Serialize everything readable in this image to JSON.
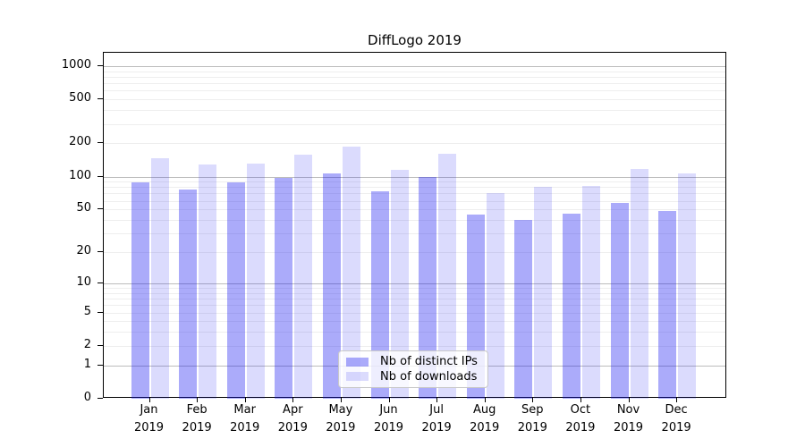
{
  "title": "DiffLogo 2019",
  "colors": {
    "distinct_ips": "rgba(15,15,240,0.35)",
    "downloads": "rgba(15,15,240,0.15)",
    "major_grid": "#bcbcbc",
    "minor_grid": "#eeeeee",
    "axis": "#000000"
  },
  "legend": {
    "items": [
      {
        "label": "Nb of distinct IPs",
        "series": "distinct_ips"
      },
      {
        "label": "Nb of downloads",
        "series": "downloads"
      }
    ]
  },
  "y_axis": {
    "scale": "log10(value+1)",
    "ticks": [
      {
        "label": "0",
        "value": 0
      },
      {
        "label": "1",
        "value": 1
      },
      {
        "label": "2",
        "value": 2
      },
      {
        "label": "5",
        "value": 5
      },
      {
        "label": "10",
        "value": 10
      },
      {
        "label": "20",
        "value": 20
      },
      {
        "label": "50",
        "value": 50
      },
      {
        "label": "100",
        "value": 100
      },
      {
        "label": "200",
        "value": 200
      },
      {
        "label": "500",
        "value": 500
      },
      {
        "label": "1000",
        "value": 1000
      }
    ]
  },
  "chart_data": {
    "type": "bar",
    "title": "DiffLogo 2019",
    "categories": [
      "Jan 2019",
      "Feb 2019",
      "Mar 2019",
      "Apr 2019",
      "May 2019",
      "Jun 2019",
      "Jul 2019",
      "Aug 2019",
      "Sep 2019",
      "Oct 2019",
      "Nov 2019",
      "Dec 2019"
    ],
    "series": [
      {
        "name": "Nb of distinct IPs",
        "key": "distinct_ips",
        "values": [
          88,
          76,
          88,
          97,
          107,
          73,
          99,
          45,
          40,
          46,
          57,
          48
        ]
      },
      {
        "name": "Nb of downloads",
        "key": "downloads",
        "values": [
          147,
          129,
          132,
          158,
          188,
          115,
          160,
          70,
          81,
          82,
          117,
          107
        ]
      }
    ],
    "yscale": "log1p",
    "ylim": [
      0,
      1320
    ],
    "y_ticks": [
      0,
      1,
      2,
      5,
      10,
      20,
      50,
      100,
      200,
      500,
      1000
    ],
    "minor_grid_values": [
      2,
      3,
      4,
      5,
      6,
      7,
      8,
      9,
      20,
      30,
      40,
      50,
      60,
      70,
      80,
      90,
      200,
      300,
      400,
      500,
      600,
      700,
      800,
      900
    ],
    "major_grid_values": [
      1,
      10,
      100,
      1000
    ],
    "grid": "on",
    "legend_position": "lower-center-inside"
  }
}
